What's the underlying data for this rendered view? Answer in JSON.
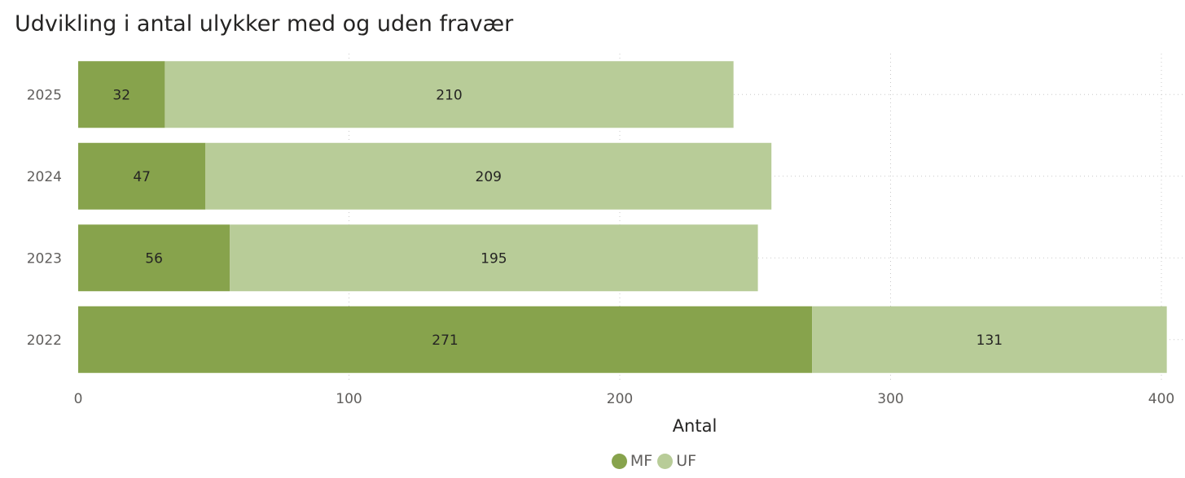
{
  "chart_data": {
    "type": "bar",
    "orientation": "horizontal",
    "stacked": true,
    "title": "Udvikling i antal ulykker med og uden fravær",
    "xlabel": "Antal",
    "ylabel": "",
    "categories": [
      "2025",
      "2024",
      "2023",
      "2022"
    ],
    "series": [
      {
        "name": "MF",
        "values": [
          32,
          47,
          56,
          271
        ],
        "color": "#87a34c"
      },
      {
        "name": "UF",
        "values": [
          210,
          209,
          195,
          131
        ],
        "color": "#b8cc98"
      }
    ],
    "xlim": [
      0,
      400
    ],
    "xticks": [
      "0",
      "100",
      "200",
      "300",
      "400"
    ],
    "grid": true,
    "legend_position": "bottom-center"
  }
}
